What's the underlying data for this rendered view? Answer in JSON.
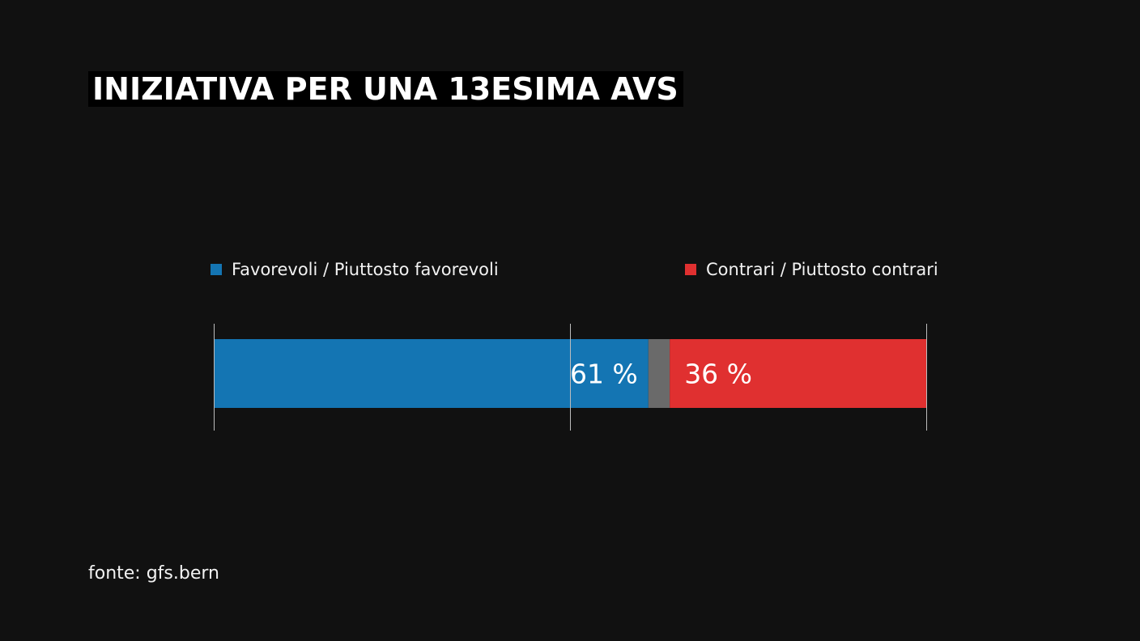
{
  "title": "INIZIATIVA PER UNA 13ESIMA AVS",
  "source": "fonte: gfs.bern",
  "chart_data": {
    "type": "bar",
    "orientation": "horizontal-stacked",
    "series": [
      {
        "name": "Favorevoli / Piuttosto favorevoli",
        "value": 61,
        "label": "61 %",
        "color": "#1475b3"
      },
      {
        "name": "",
        "value": 3,
        "label": "",
        "color": "#6a6a6a"
      },
      {
        "name": "Contrari / Piuttosto contrari",
        "value": 36,
        "label": "36 %",
        "color": "#e03030"
      }
    ],
    "xlim": [
      0,
      100
    ],
    "ticks": [
      0,
      50,
      100
    ],
    "legend_placement": "top"
  }
}
